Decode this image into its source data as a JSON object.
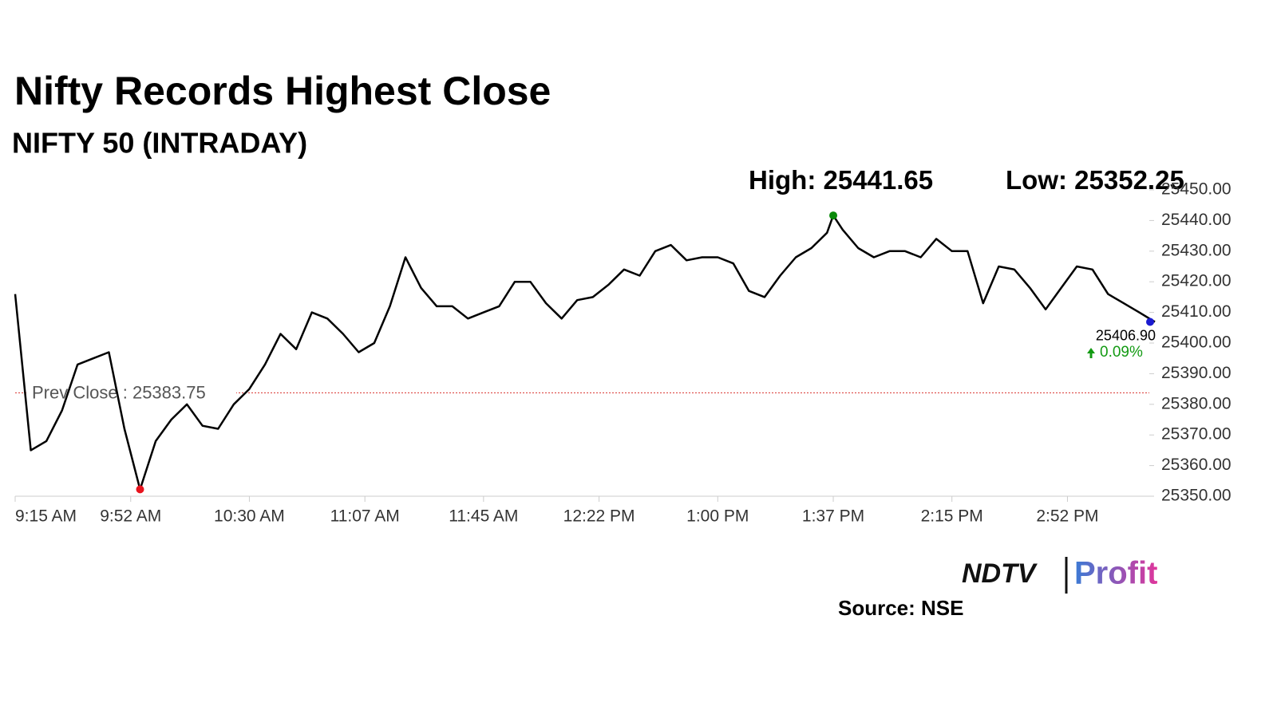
{
  "chart_data": {
    "type": "line",
    "title": "Nifty Records Highest Close",
    "subtitle": "NIFTY 50 (INTRADAY)",
    "source": "Source: NSE",
    "logo": "NDTV",
    "logo_suffix": "Profit",
    "x": [
      "9:15 AM",
      "9:20 AM",
      "9:25 AM",
      "9:30 AM",
      "9:35 AM",
      "9:40 AM",
      "9:45 AM",
      "9:50 AM",
      "9:55 AM",
      "10:00 AM",
      "10:05 AM",
      "10:10 AM",
      "10:15 AM",
      "10:20 AM",
      "10:25 AM",
      "10:30 AM",
      "10:35 AM",
      "10:40 AM",
      "10:45 AM",
      "10:50 AM",
      "10:55 AM",
      "11:00 AM",
      "11:05 AM",
      "11:10 AM",
      "11:15 AM",
      "11:20 AM",
      "11:25 AM",
      "11:30 AM",
      "11:35 AM",
      "11:40 AM",
      "11:45 AM",
      "11:50 AM",
      "11:55 AM",
      "12:00 PM",
      "12:05 PM",
      "12:10 PM",
      "12:15 PM",
      "12:20 PM",
      "12:25 PM",
      "12:30 PM",
      "12:35 PM",
      "12:40 PM",
      "12:45 PM",
      "12:50 PM",
      "12:55 PM",
      "1:00 PM",
      "1:05 PM",
      "1:10 PM",
      "1:15 PM",
      "1:20 PM",
      "1:25 PM",
      "1:30 PM",
      "1:35 PM",
      "1:37 PM",
      "1:40 PM",
      "1:45 PM",
      "1:50 PM",
      "1:55 PM",
      "2:00 PM",
      "2:05 PM",
      "2:10 PM",
      "2:15 PM",
      "2:20 PM",
      "2:25 PM",
      "2:30 PM",
      "2:35 PM",
      "2:40 PM",
      "2:45 PM",
      "2:50 PM",
      "2:55 PM",
      "3:00 PM",
      "3:05 PM",
      "3:10 PM",
      "3:15 PM",
      "3:20 PM"
    ],
    "series": [
      {
        "name": "NIFTY 50",
        "color": "#000000",
        "values": [
          25416,
          25365,
          25368,
          25378,
          25393,
          25395,
          25397,
          25372,
          25352.25,
          25368,
          25375,
          25380,
          25373,
          25372,
          25380,
          25385,
          25393,
          25403,
          25398,
          25410,
          25408,
          25403,
          25397,
          25400,
          25412,
          25428,
          25418,
          25412,
          25412,
          25408,
          25410,
          25412,
          25420,
          25420,
          25413,
          25408,
          25414,
          25415,
          25419,
          25424,
          25422,
          25430,
          25432,
          25427,
          25428,
          25428,
          25426,
          25417,
          25415,
          25422,
          25428,
          25431,
          25436,
          25441.65,
          25437,
          25431,
          25428,
          25430,
          25430,
          25428,
          25434,
          25430,
          25430,
          25413,
          25425,
          25424,
          25418,
          25411,
          25418,
          25425,
          25424,
          25416,
          25413,
          25410,
          25406.9
        ]
      }
    ],
    "xlim": [
      "9:15 AM",
      "3:20 PM"
    ],
    "xticks": [
      "9:15 AM",
      "9:52 AM",
      "10:30 AM",
      "11:07 AM",
      "11:45 AM",
      "12:22 PM",
      "1:00 PM",
      "1:37 PM",
      "2:15 PM",
      "2:52 PM"
    ],
    "ylim": [
      25350,
      25450
    ],
    "yticks": [
      {
        "value": 25350,
        "label": "25350.00"
      },
      {
        "value": 25360,
        "label": "25360.00"
      },
      {
        "value": 25370,
        "label": "25370.00"
      },
      {
        "value": 25380,
        "label": "25380.00"
      },
      {
        "value": 25390,
        "label": "25390.00"
      },
      {
        "value": 25400,
        "label": "25400.00"
      },
      {
        "value": 25410,
        "label": "25410.00"
      },
      {
        "value": 25420,
        "label": "25420.00"
      },
      {
        "value": 25430,
        "label": "25430.00"
      },
      {
        "value": 25440,
        "label": "25440.00"
      },
      {
        "value": 25450,
        "label": "25450.00"
      }
    ],
    "annotations": {
      "high_label": "High:",
      "high": 25441.65,
      "high_color": "#0a8a0a",
      "low_label": "Low:",
      "low": 25352.25,
      "low_color": "#e8141e",
      "prev_close_label": "Prev Close :",
      "prev_close": 25383.75,
      "prev_close_color": "#d9302c",
      "last": 25406.9,
      "last_label": "25406.90",
      "last_color": "#1a1ad0",
      "change": "0.09%",
      "change_color": "#139a13"
    }
  }
}
